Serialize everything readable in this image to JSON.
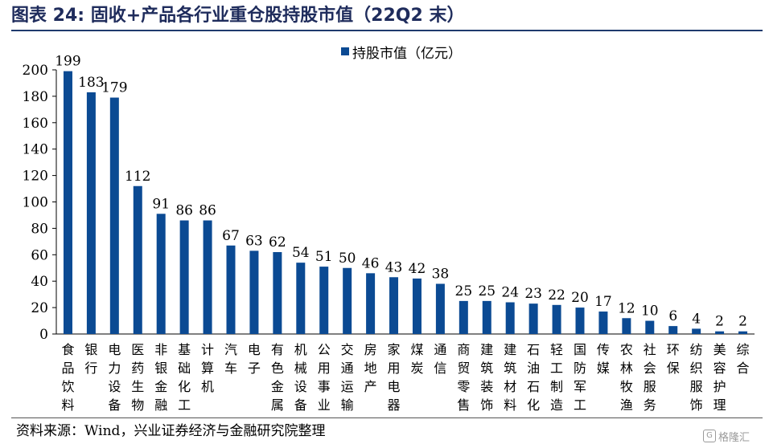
{
  "figure": {
    "title": "图表 24:  固收+产品各行业重仓股持股市值（22Q2 末）",
    "source": "资料来源：Wind，兴业证券经济与金融研究院整理",
    "watermark": "格隆汇"
  },
  "colors": {
    "bar": "#0b4a93",
    "title": "#1f2c5c",
    "axis": "#000000"
  },
  "chart_data": {
    "type": "bar",
    "categories": [
      "食品饮料",
      "银行",
      "电力设备",
      "医药生物",
      "非银金融",
      "基础化工",
      "计算机",
      "汽车",
      "电子",
      "有色金属",
      "机械设备",
      "公用事业",
      "交通运输",
      "房地产",
      "家用电器",
      "煤炭",
      "通信",
      "商贸零售",
      "建筑装饰",
      "建筑材料",
      "石油石化",
      "轻工制造",
      "国防军工",
      "传媒",
      "农林牧渔",
      "社会服务",
      "环保",
      "纺织服饰",
      "美容护理",
      "综合"
    ],
    "series": [
      {
        "name": "持股市值（亿元）",
        "values": [
          199,
          183,
          179,
          112,
          91,
          86,
          86,
          67,
          63,
          62,
          54,
          51,
          50,
          46,
          43,
          42,
          38,
          25,
          25,
          24,
          23,
          22,
          20,
          17,
          12,
          10,
          6,
          4,
          2,
          2
        ]
      }
    ],
    "ylim": [
      0,
      200
    ],
    "yticks": [
      0,
      20,
      40,
      60,
      80,
      100,
      120,
      140,
      160,
      180,
      200
    ],
    "legend_position": "top-center",
    "grid": false,
    "data_labels": true
  }
}
